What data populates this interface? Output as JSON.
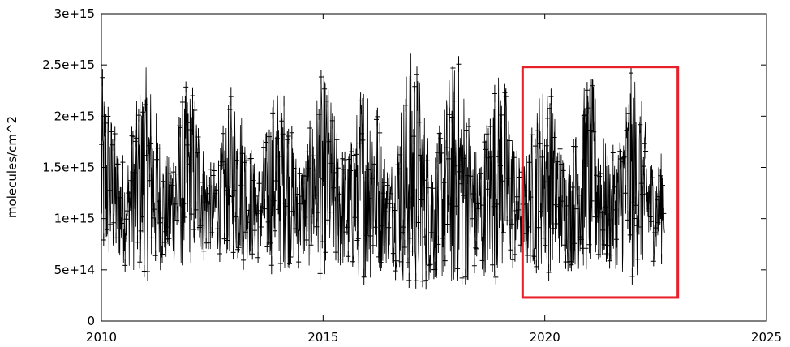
{
  "chart_data": {
    "type": "scatter",
    "title": "",
    "xlabel": "",
    "ylabel": "molecules/cm^2",
    "xlim": [
      2010,
      2025
    ],
    "ylim": [
      0,
      3000000000000000.0
    ],
    "grid": false,
    "legend": "none",
    "x_ticks": [
      {
        "value": 2010,
        "label": "2010"
      },
      {
        "value": 2015,
        "label": "2015"
      },
      {
        "value": 2020,
        "label": "2020"
      },
      {
        "value": 2025,
        "label": "2025"
      }
    ],
    "y_ticks": [
      {
        "value": 0,
        "label": "0"
      },
      {
        "value": 500000000000000.0,
        "label": "5e+14"
      },
      {
        "value": 1000000000000000.0,
        "label": "1e+15"
      },
      {
        "value": 1500000000000000.0,
        "label": "1.5e+15"
      },
      {
        "value": 2000000000000000.0,
        "label": "2e+15"
      },
      {
        "value": 2500000000000000.0,
        "label": "2.5e+15"
      },
      {
        "value": 3000000000000000.0,
        "label": "3e+15"
      }
    ],
    "series": [
      {
        "marker": "plus",
        "line": true,
        "error_bars": true,
        "color": "#000000",
        "approx_time_range": [
          2010.0,
          2022.7
        ],
        "approx_median": 1250000000000000.0,
        "approx_typical_range": [
          600000000000000.0,
          2200000000000000.0
        ],
        "seasonal_peaks": [
          {
            "x": 2010.5,
            "y": 2450000000000000.0
          },
          {
            "x": 2011.0,
            "y": 2600000000000000.0
          },
          {
            "x": 2011.9,
            "y": 2350000000000000.0
          },
          {
            "x": 2012.5,
            "y": 1950000000000000.0
          },
          {
            "x": 2013.0,
            "y": 2250000000000000.0
          },
          {
            "x": 2014.0,
            "y": 2350000000000000.0
          },
          {
            "x": 2015.0,
            "y": 2450000000000000.0
          },
          {
            "x": 2016.0,
            "y": 2600000000000000.0
          },
          {
            "x": 2016.5,
            "y": 2300000000000000.0
          },
          {
            "x": 2017.0,
            "y": 2920000000000000.0
          },
          {
            "x": 2018.0,
            "y": 2750000000000000.0
          },
          {
            "x": 2018.8,
            "y": 2620000000000000.0
          },
          {
            "x": 2019.3,
            "y": 2300000000000000.0
          },
          {
            "x": 2020.0,
            "y": 2380000000000000.0
          },
          {
            "x": 2021.0,
            "y": 2450000000000000.0
          },
          {
            "x": 2022.0,
            "y": 2420000000000000.0
          },
          {
            "x": 2022.6,
            "y": 2050000000000000.0
          }
        ],
        "seasonal_troughs": [
          {
            "x": 2010.3,
            "y": 520000000000000.0
          },
          {
            "x": 2011.7,
            "y": 450000000000000.0
          },
          {
            "x": 2013.3,
            "y": 550000000000000.0
          },
          {
            "x": 2015.0,
            "y": 460000000000000.0
          },
          {
            "x": 2016.8,
            "y": 400000000000000.0
          },
          {
            "x": 2017.7,
            "y": 380000000000000.0
          },
          {
            "x": 2019.2,
            "y": 440000000000000.0
          },
          {
            "x": 2021.1,
            "y": 480000000000000.0
          },
          {
            "x": 2022.0,
            "y": 340000000000000.0
          }
        ]
      }
    ],
    "annotations": [
      {
        "type": "rectangle",
        "color": "#e8202a",
        "x_range": [
          2019.5,
          2023.0
        ],
        "y_range": [
          230000000000000.0,
          2480000000000000.0
        ]
      }
    ]
  }
}
